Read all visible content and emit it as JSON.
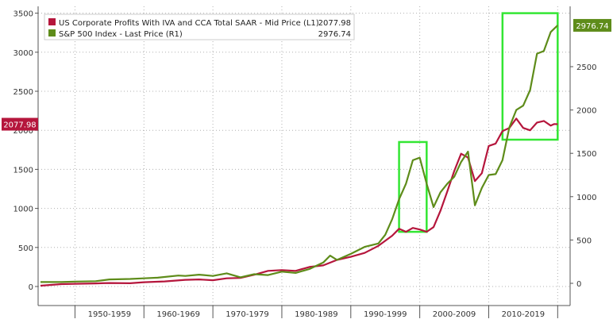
{
  "chart_data": {
    "type": "line",
    "grid": true,
    "legend_position": "top-left",
    "left_axis": {
      "ylim": [
        -300,
        3500
      ],
      "ticks": [
        0,
        500,
        1000,
        1500,
        2000,
        2500,
        3000,
        3500
      ]
    },
    "right_axis": {
      "ylim": [
        -150,
        3050
      ],
      "ticks": [
        0,
        500,
        1000,
        1500,
        2000,
        2500
      ]
    },
    "x_range": [
      1945,
      2021
    ],
    "x_categories": [
      "1950-1959",
      "1960-1969",
      "1970-1979",
      "1980-1989",
      "1990-1999",
      "2000-2009",
      "2010-2019"
    ],
    "series": [
      {
        "name": "US Corporate Profits With IVA and CCA Total SAAR - Mid Price (L1)",
        "last_label": "2077.98",
        "axis": "left",
        "color": "#b5163c",
        "points": [
          [
            1945,
            10
          ],
          [
            1948,
            30
          ],
          [
            1950,
            35
          ],
          [
            1953,
            40
          ],
          [
            1955,
            45
          ],
          [
            1958,
            42
          ],
          [
            1960,
            55
          ],
          [
            1963,
            65
          ],
          [
            1966,
            85
          ],
          [
            1968,
            90
          ],
          [
            1970,
            80
          ],
          [
            1972,
            105
          ],
          [
            1974,
            110
          ],
          [
            1976,
            150
          ],
          [
            1978,
            200
          ],
          [
            1980,
            210
          ],
          [
            1982,
            200
          ],
          [
            1984,
            250
          ],
          [
            1986,
            270
          ],
          [
            1988,
            340
          ],
          [
            1990,
            380
          ],
          [
            1992,
            430
          ],
          [
            1994,
            520
          ],
          [
            1996,
            650
          ],
          [
            1997,
            740
          ],
          [
            1998,
            700
          ],
          [
            1999,
            750
          ],
          [
            2000,
            730
          ],
          [
            2001,
            700
          ],
          [
            2002,
            760
          ],
          [
            2003,
            970
          ],
          [
            2004,
            1220
          ],
          [
            2005,
            1480
          ],
          [
            2006,
            1700
          ],
          [
            2007,
            1650
          ],
          [
            2008,
            1350
          ],
          [
            2009,
            1450
          ],
          [
            2010,
            1800
          ],
          [
            2011,
            1830
          ],
          [
            2012,
            1990
          ],
          [
            2013,
            2030
          ],
          [
            2014,
            2150
          ],
          [
            2015,
            2030
          ],
          [
            2016,
            2000
          ],
          [
            2017,
            2100
          ],
          [
            2018,
            2120
          ],
          [
            2019,
            2060
          ],
          [
            2019.5,
            2080
          ],
          [
            2020,
            2077.98
          ]
        ]
      },
      {
        "name": "S&P 500 Index - Last Price (R1)",
        "last_label": "2976.74",
        "axis": "right",
        "color": "#5e8c1a",
        "points": [
          [
            1945,
            15
          ],
          [
            1948,
            15
          ],
          [
            1950,
            20
          ],
          [
            1953,
            25
          ],
          [
            1955,
            45
          ],
          [
            1958,
            50
          ],
          [
            1960,
            58
          ],
          [
            1962,
            65
          ],
          [
            1965,
            90
          ],
          [
            1966,
            85
          ],
          [
            1968,
            100
          ],
          [
            1970,
            85
          ],
          [
            1972,
            115
          ],
          [
            1974,
            70
          ],
          [
            1976,
            105
          ],
          [
            1978,
            95
          ],
          [
            1980,
            135
          ],
          [
            1982,
            120
          ],
          [
            1984,
            165
          ],
          [
            1986,
            240
          ],
          [
            1987,
            320
          ],
          [
            1988,
            270
          ],
          [
            1990,
            340
          ],
          [
            1992,
            420
          ],
          [
            1994,
            460
          ],
          [
            1995,
            560
          ],
          [
            1996,
            740
          ],
          [
            1997,
            970
          ],
          [
            1998,
            1150
          ],
          [
            1999,
            1420
          ],
          [
            2000,
            1450
          ],
          [
            2001,
            1150
          ],
          [
            2002,
            880
          ],
          [
            2003,
            1050
          ],
          [
            2004,
            1150
          ],
          [
            2005,
            1230
          ],
          [
            2006,
            1400
          ],
          [
            2007,
            1520
          ],
          [
            2008,
            900
          ],
          [
            2009,
            1100
          ],
          [
            2010,
            1250
          ],
          [
            2011,
            1260
          ],
          [
            2012,
            1420
          ],
          [
            2013,
            1800
          ],
          [
            2014,
            2000
          ],
          [
            2015,
            2050
          ],
          [
            2016,
            2230
          ],
          [
            2017,
            2650
          ],
          [
            2018,
            2680
          ],
          [
            2019,
            2900
          ],
          [
            2020,
            2976.74
          ]
        ]
      }
    ],
    "highlight_boxes": [
      {
        "x": [
          1997,
          2001
        ],
        "y_left": [
          700,
          1850
        ]
      },
      {
        "x": [
          2012,
          2020
        ],
        "y_left": [
          1880,
          3500
        ]
      }
    ]
  },
  "colors": {
    "profits": "#b5163c",
    "sp500": "#5e8c1a",
    "highlight": "#33e633",
    "grid": "#b0b0b0",
    "axis": "#555555",
    "legend_bg": "#ffffff"
  }
}
